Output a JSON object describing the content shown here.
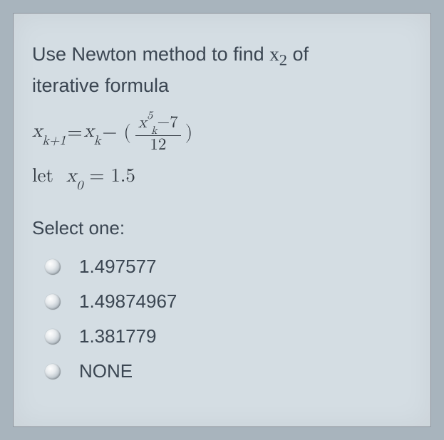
{
  "question": {
    "line1": "Use Newton method to find ",
    "target_var": "x",
    "target_sub": "2",
    "line1_tail": " of",
    "line2": "iterative formula"
  },
  "formula": {
    "lhs_var": "x",
    "lhs_sub": "k+1",
    "eq": " = ",
    "rhs_var": "x",
    "rhs_sub": "k",
    "minus": " − (",
    "num_var": "x",
    "num_sub": "k",
    "num_sup": "5",
    "num_tail": "−7",
    "den": "12",
    "close": ")"
  },
  "let": {
    "word": "let",
    "var": "x",
    "sub": "0",
    "eq": " = ",
    "val": "1.5"
  },
  "select_label": "Select one:",
  "options": [
    {
      "label": "1.497577"
    },
    {
      "label": "1.49874967"
    },
    {
      "label": "1.381779"
    },
    {
      "label": "NONE"
    }
  ],
  "colors": {
    "page_bg": "#a8b4bd",
    "card_bg": "#d4dde3",
    "text": "#3b4652",
    "math": "#333a42"
  }
}
